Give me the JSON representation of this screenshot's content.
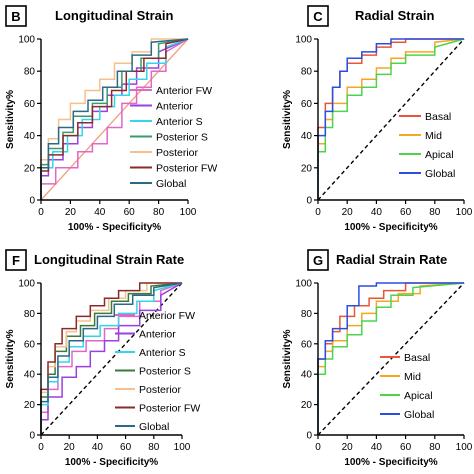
{
  "chart_data": [
    {
      "type": "line",
      "letter": "B",
      "title": "Longitudinal Strain",
      "xlabel": "100% - Specificity%",
      "ylabel": "Sensitivity%",
      "xlim": [
        0,
        100
      ],
      "ylim": [
        0,
        100
      ],
      "xticks": [
        0,
        20,
        40,
        60,
        80,
        100
      ],
      "yticks": [
        0,
        20,
        40,
        60,
        80,
        100
      ],
      "reference_line": "diagonal",
      "reference_color": "#f2a384",
      "legend_position": "right",
      "series": [
        {
          "name": "Anterior FW",
          "color": "#e066c8",
          "x": [
            0,
            0,
            10,
            10,
            25,
            25,
            35,
            35,
            45,
            45,
            55,
            55,
            65,
            65,
            75,
            75,
            85,
            85,
            100
          ],
          "y": [
            0,
            10,
            10,
            20,
            20,
            30,
            30,
            35,
            35,
            45,
            45,
            60,
            60,
            70,
            70,
            80,
            80,
            92,
            100
          ]
        },
        {
          "name": "Anterior",
          "color": "#9a3fe0",
          "x": [
            0,
            0,
            5,
            5,
            15,
            15,
            25,
            25,
            35,
            35,
            45,
            45,
            55,
            55,
            65,
            65,
            80,
            80,
            100
          ],
          "y": [
            0,
            15,
            15,
            25,
            25,
            35,
            35,
            45,
            45,
            55,
            55,
            65,
            65,
            72,
            72,
            82,
            82,
            92,
            100
          ]
        },
        {
          "name": "Anterior S",
          "color": "#33d6e8",
          "x": [
            0,
            0,
            8,
            8,
            18,
            18,
            28,
            28,
            40,
            40,
            50,
            50,
            60,
            60,
            72,
            72,
            85,
            85,
            100
          ],
          "y": [
            0,
            20,
            20,
            30,
            30,
            40,
            40,
            50,
            50,
            58,
            58,
            65,
            65,
            75,
            75,
            85,
            85,
            95,
            100
          ]
        },
        {
          "name": "Posterior S",
          "color": "#3a9a6a",
          "x": [
            0,
            0,
            5,
            5,
            15,
            15,
            22,
            22,
            35,
            35,
            45,
            45,
            55,
            55,
            68,
            68,
            80,
            80,
            100
          ],
          "y": [
            0,
            22,
            22,
            32,
            32,
            42,
            42,
            52,
            52,
            60,
            60,
            70,
            70,
            80,
            80,
            88,
            88,
            97,
            100
          ]
        },
        {
          "name": "Posterior",
          "color": "#f6c08c",
          "x": [
            0,
            0,
            5,
            5,
            12,
            12,
            20,
            20,
            30,
            30,
            40,
            40,
            50,
            50,
            62,
            62,
            75,
            75,
            100
          ],
          "y": [
            0,
            25,
            25,
            38,
            38,
            50,
            50,
            60,
            60,
            68,
            68,
            75,
            75,
            85,
            85,
            92,
            92,
            100,
            100
          ]
        },
        {
          "name": "Posterior FW",
          "color": "#8c2a2a",
          "x": [
            0,
            0,
            5,
            5,
            15,
            15,
            25,
            25,
            35,
            35,
            48,
            48,
            58,
            58,
            70,
            70,
            85,
            85,
            100
          ],
          "y": [
            0,
            18,
            18,
            28,
            28,
            40,
            40,
            48,
            48,
            58,
            58,
            68,
            68,
            80,
            80,
            88,
            88,
            97,
            100
          ]
        },
        {
          "name": "Global",
          "color": "#2a6a88",
          "x": [
            0,
            0,
            5,
            5,
            12,
            12,
            22,
            22,
            32,
            32,
            42,
            42,
            52,
            52,
            62,
            62,
            75,
            75,
            100
          ],
          "y": [
            0,
            20,
            20,
            35,
            35,
            45,
            45,
            55,
            55,
            62,
            62,
            70,
            70,
            80,
            80,
            90,
            90,
            98,
            100
          ]
        }
      ]
    },
    {
      "type": "line",
      "letter": "C",
      "title": "Radial Strain",
      "xlabel": "100% - Specificity%",
      "ylabel": "Sensitivity%",
      "xlim": [
        0,
        100
      ],
      "ylim": [
        0,
        100
      ],
      "xticks": [
        0,
        20,
        40,
        60,
        80,
        100
      ],
      "yticks": [
        0,
        20,
        40,
        60,
        80,
        100
      ],
      "reference_line": "diagonal",
      "reference_color": "#000000",
      "legend_position": "bottom-right",
      "series": [
        {
          "name": "Basal",
          "color": "#e8553a",
          "x": [
            0,
            0,
            5,
            5,
            10,
            10,
            15,
            15,
            20,
            20,
            30,
            30,
            40,
            40,
            50,
            50,
            60,
            60,
            100
          ],
          "y": [
            0,
            45,
            45,
            60,
            60,
            70,
            70,
            80,
            80,
            85,
            85,
            90,
            90,
            95,
            95,
            98,
            98,
            100,
            100
          ]
        },
        {
          "name": "Mid",
          "color": "#f5a623",
          "x": [
            0,
            0,
            5,
            5,
            10,
            10,
            20,
            20,
            30,
            30,
            40,
            40,
            50,
            50,
            60,
            60,
            80,
            80,
            100
          ],
          "y": [
            0,
            35,
            35,
            50,
            50,
            60,
            60,
            70,
            70,
            75,
            75,
            82,
            82,
            88,
            88,
            92,
            92,
            98,
            100
          ]
        },
        {
          "name": "Apical",
          "color": "#4fd34f",
          "x": [
            0,
            0,
            5,
            5,
            10,
            10,
            20,
            20,
            30,
            30,
            40,
            40,
            50,
            50,
            60,
            60,
            80,
            80,
            100
          ],
          "y": [
            0,
            30,
            30,
            45,
            45,
            55,
            55,
            65,
            65,
            70,
            70,
            78,
            78,
            85,
            85,
            90,
            90,
            95,
            100
          ]
        },
        {
          "name": "Global",
          "color": "#2a4fe0",
          "x": [
            0,
            0,
            5,
            5,
            10,
            10,
            15,
            15,
            20,
            20,
            30,
            30,
            40,
            40,
            50,
            50,
            100
          ],
          "y": [
            0,
            40,
            40,
            55,
            55,
            70,
            70,
            80,
            80,
            88,
            88,
            92,
            92,
            97,
            97,
            100,
            100
          ]
        }
      ]
    },
    {
      "type": "line",
      "letter": "F",
      "title": "Longitudinal Strain Rate",
      "xlabel": "100% - Specificity%",
      "ylabel": "Sensitivity%",
      "xlim": [
        0,
        100
      ],
      "ylim": [
        0,
        100
      ],
      "xticks": [
        0,
        20,
        40,
        60,
        80,
        100
      ],
      "yticks": [
        0,
        20,
        40,
        60,
        80,
        100
      ],
      "reference_line": "diagonal",
      "reference_color": "#000000",
      "legend_position": "right",
      "series": [
        {
          "name": "Anterior FW",
          "color": "#e066c8",
          "x": [
            0,
            0,
            5,
            5,
            12,
            12,
            22,
            22,
            32,
            32,
            45,
            45,
            55,
            55,
            70,
            70,
            85,
            85,
            100
          ],
          "y": [
            0,
            15,
            15,
            30,
            30,
            45,
            45,
            55,
            55,
            62,
            62,
            70,
            70,
            78,
            78,
            88,
            88,
            95,
            100
          ]
        },
        {
          "name": "Anterior",
          "color": "#9a3fe0",
          "x": [
            0,
            0,
            5,
            5,
            15,
            15,
            25,
            25,
            35,
            35,
            45,
            45,
            55,
            55,
            70,
            70,
            85,
            85,
            100
          ],
          "y": [
            0,
            10,
            10,
            25,
            25,
            38,
            38,
            45,
            45,
            55,
            55,
            62,
            62,
            72,
            72,
            82,
            82,
            92,
            100
          ]
        },
        {
          "name": "Anterior S",
          "color": "#33d6e8",
          "x": [
            0,
            0,
            5,
            5,
            12,
            12,
            20,
            20,
            30,
            30,
            42,
            42,
            55,
            55,
            68,
            68,
            80,
            80,
            100
          ],
          "y": [
            0,
            20,
            20,
            35,
            35,
            48,
            48,
            58,
            58,
            65,
            65,
            72,
            72,
            80,
            80,
            88,
            88,
            95,
            100
          ]
        },
        {
          "name": "Posterior S",
          "color": "#3a7a3a",
          "x": [
            0,
            0,
            5,
            5,
            10,
            10,
            18,
            18,
            28,
            28,
            38,
            38,
            50,
            50,
            62,
            62,
            78,
            78,
            100
          ],
          "y": [
            0,
            25,
            25,
            40,
            40,
            55,
            55,
            65,
            65,
            72,
            72,
            80,
            80,
            88,
            88,
            93,
            93,
            98,
            100
          ]
        },
        {
          "name": "Posterior",
          "color": "#f6c08c",
          "x": [
            0,
            0,
            5,
            5,
            10,
            10,
            18,
            18,
            25,
            25,
            35,
            35,
            48,
            48,
            60,
            60,
            75,
            75,
            100
          ],
          "y": [
            0,
            28,
            28,
            45,
            45,
            58,
            58,
            68,
            68,
            75,
            75,
            82,
            82,
            90,
            90,
            95,
            95,
            100,
            100
          ]
        },
        {
          "name": "Posterior FW",
          "color": "#8c2a2a",
          "x": [
            0,
            0,
            5,
            5,
            10,
            10,
            15,
            15,
            25,
            25,
            35,
            35,
            45,
            45,
            55,
            55,
            70,
            70,
            100
          ],
          "y": [
            0,
            30,
            30,
            48,
            48,
            60,
            60,
            70,
            70,
            78,
            78,
            85,
            85,
            90,
            90,
            95,
            95,
            100,
            100
          ]
        },
        {
          "name": "Global",
          "color": "#2a6a88",
          "x": [
            0,
            0,
            5,
            5,
            12,
            12,
            20,
            20,
            30,
            30,
            40,
            40,
            52,
            52,
            65,
            65,
            80,
            80,
            100
          ],
          "y": [
            0,
            22,
            22,
            38,
            38,
            52,
            52,
            62,
            62,
            70,
            70,
            78,
            78,
            86,
            86,
            92,
            92,
            97,
            100
          ]
        }
      ]
    },
    {
      "type": "line",
      "letter": "G",
      "title": "Radial Strain Rate",
      "xlabel": "100% - Specificity%",
      "ylabel": "Sensitivity%",
      "xlim": [
        0,
        100
      ],
      "ylim": [
        0,
        100
      ],
      "xticks": [
        0,
        20,
        40,
        60,
        80,
        100
      ],
      "yticks": [
        0,
        20,
        40,
        60,
        80,
        100
      ],
      "reference_line": "diagonal",
      "reference_color": "#000000",
      "legend_position": "bottom-right",
      "series": [
        {
          "name": "Basal",
          "color": "#e8553a",
          "x": [
            0,
            0,
            5,
            5,
            10,
            10,
            15,
            15,
            25,
            25,
            35,
            35,
            45,
            45,
            60,
            60,
            100
          ],
          "y": [
            0,
            50,
            50,
            60,
            60,
            68,
            68,
            78,
            78,
            85,
            85,
            90,
            90,
            95,
            95,
            100,
            100
          ]
        },
        {
          "name": "Mid",
          "color": "#f5a623",
          "x": [
            0,
            0,
            5,
            5,
            10,
            10,
            20,
            20,
            30,
            30,
            40,
            40,
            55,
            55,
            70,
            70,
            100
          ],
          "y": [
            0,
            45,
            45,
            55,
            55,
            62,
            62,
            72,
            72,
            80,
            80,
            88,
            88,
            93,
            93,
            98,
            100
          ]
        },
        {
          "name": "Apical",
          "color": "#4fd34f",
          "x": [
            0,
            0,
            5,
            5,
            10,
            10,
            20,
            20,
            30,
            30,
            40,
            40,
            50,
            50,
            65,
            65,
            100
          ],
          "y": [
            0,
            40,
            40,
            50,
            50,
            58,
            58,
            66,
            66,
            75,
            75,
            84,
            84,
            92,
            92,
            97,
            100
          ]
        },
        {
          "name": "Global",
          "color": "#2a4fe0",
          "x": [
            0,
            0,
            5,
            5,
            10,
            10,
            20,
            20,
            28,
            28,
            40,
            40,
            100
          ],
          "y": [
            0,
            50,
            50,
            62,
            62,
            70,
            70,
            85,
            85,
            98,
            98,
            100,
            100
          ]
        }
      ]
    }
  ]
}
